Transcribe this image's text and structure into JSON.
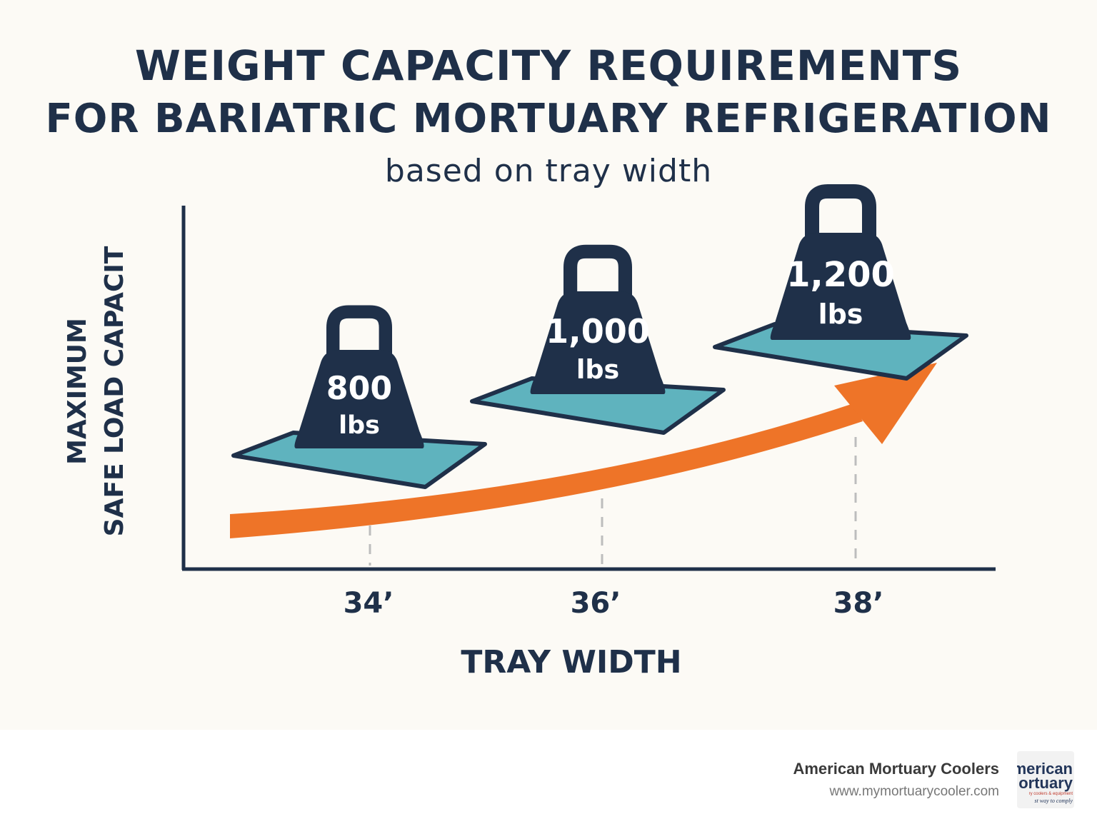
{
  "chart_data": {
    "type": "bar",
    "title": "WEIGHT CAPACITY REQUIREMENTS",
    "title_line2": "FOR BARIATRIC MORTUARY REFRIGERATION",
    "subtitle": "based on tray width",
    "xlabel": "TRAY WIDTH",
    "ylabel_line1": "MAXIMUM",
    "ylabel_line2": "SAFE LOAD CAPACIT",
    "categories": [
      "34’",
      "36’",
      "38’"
    ],
    "values": [
      800,
      1000,
      1200
    ],
    "value_labels": [
      "800",
      "1,000",
      "1,200"
    ],
    "unit": "lbs",
    "grid": false,
    "colors": {
      "navy": "#1f3049",
      "tray": "#5fb3be",
      "arrow": "#ee7428",
      "background": "#fcfaf5"
    }
  },
  "footer": {
    "brand_name": "American Mortuary Coolers",
    "url": "www.mymortuarycooler.com",
    "logo_line1": "merican",
    "logo_line2": "ortuary",
    "logo_line3": "ry coolers & equipment",
    "logo_line4": "st way to comply"
  }
}
